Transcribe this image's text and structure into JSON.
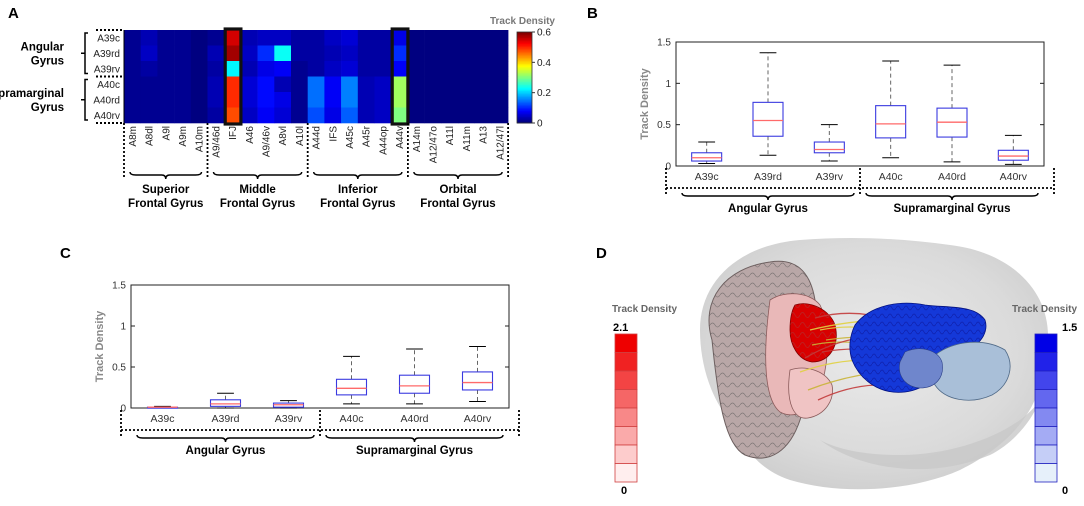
{
  "panels": {
    "a": "A",
    "b": "B",
    "c": "C",
    "d": "D"
  },
  "colors": {
    "box": "#3a3ae0",
    "median": "#ff6a6a",
    "whisker": "#666666",
    "axis": "#222222",
    "highlight": "#111111",
    "heat_low": "#00008f",
    "red_scale_top": "#ee0000",
    "blue_scale_top": "#0000e6"
  },
  "chart_data": [
    {
      "type": "heatmap",
      "panel": "A",
      "title": "Track Density",
      "colorbar": {
        "min": 0,
        "max": 0.6,
        "ticks": [
          "0",
          "0.2",
          "0.4",
          "0.6"
        ],
        "colormap": "jet"
      },
      "rows": [
        "A39c",
        "A39rd",
        "A39rv",
        "A40c",
        "A40rd",
        "A40rv"
      ],
      "row_groups": [
        {
          "label_line1": "Angular",
          "label_line2": "Gyrus",
          "rows": [
            "A39c",
            "A39rd",
            "A39rv"
          ]
        },
        {
          "label_line1": "Supramarginal",
          "label_line2": "Gyrus",
          "rows": [
            "A40c",
            "A40rd",
            "A40rv"
          ]
        }
      ],
      "columns": [
        "A8m",
        "A8dl",
        "A9l",
        "A9m",
        "A10m",
        "A9/46d",
        "IFJ",
        "A46",
        "A9/46v",
        "A8vl",
        "A10l",
        "A44d",
        "IFS",
        "A45c",
        "A45r",
        "A44op",
        "A44v",
        "A14m",
        "A12/47o",
        "A11l",
        "A11m",
        "A13",
        "A12/47l"
      ],
      "column_groups": [
        {
          "label_line1": "Superior",
          "label_line2": "Frontal Gyrus",
          "from": 0,
          "to": 5
        },
        {
          "label_line1": "Middle",
          "label_line2": "Frontal Gyrus",
          "from": 5,
          "to": 11
        },
        {
          "label_line1": "Inferior",
          "label_line2": "Frontal Gyrus",
          "from": 11,
          "to": 17
        },
        {
          "label_line1": "Orbital",
          "label_line2": "Frontal Gyrus",
          "from": 17,
          "to": 23
        }
      ],
      "highlighted_columns": [
        "IFJ",
        "A44v"
      ],
      "values": [
        [
          0.01,
          0.03,
          0.01,
          0.01,
          0.0,
          0.01,
          0.55,
          0.03,
          0.04,
          0.04,
          0.02,
          0.02,
          0.04,
          0.05,
          0.02,
          0.02,
          0.06,
          0.0,
          0.0,
          0.0,
          0.0,
          0.0,
          0.0
        ],
        [
          0.01,
          0.04,
          0.01,
          0.01,
          0.0,
          0.03,
          0.58,
          0.04,
          0.1,
          0.23,
          0.02,
          0.02,
          0.03,
          0.04,
          0.02,
          0.02,
          0.1,
          0.0,
          0.0,
          0.0,
          0.0,
          0.0,
          0.0
        ],
        [
          0.01,
          0.02,
          0.01,
          0.01,
          0.0,
          0.02,
          0.22,
          0.03,
          0.06,
          0.07,
          0.01,
          0.02,
          0.04,
          0.05,
          0.02,
          0.02,
          0.07,
          0.0,
          0.0,
          0.0,
          0.0,
          0.0,
          0.0
        ],
        [
          0.01,
          0.01,
          0.01,
          0.01,
          0.0,
          0.03,
          0.5,
          0.05,
          0.08,
          0.03,
          0.01,
          0.14,
          0.07,
          0.15,
          0.03,
          0.04,
          0.32,
          0.0,
          0.0,
          0.0,
          0.0,
          0.0,
          0.0
        ],
        [
          0.01,
          0.01,
          0.01,
          0.01,
          0.0,
          0.03,
          0.5,
          0.05,
          0.08,
          0.06,
          0.01,
          0.14,
          0.07,
          0.15,
          0.03,
          0.04,
          0.32,
          0.0,
          0.0,
          0.0,
          0.0,
          0.0,
          0.0
        ],
        [
          0.01,
          0.01,
          0.01,
          0.01,
          0.0,
          0.02,
          0.48,
          0.04,
          0.07,
          0.05,
          0.01,
          0.12,
          0.06,
          0.13,
          0.03,
          0.04,
          0.3,
          0.0,
          0.0,
          0.0,
          0.0,
          0.0,
          0.0
        ]
      ]
    },
    {
      "type": "boxplot",
      "panel": "B",
      "ylabel": "Track Density",
      "ylim": [
        0,
        1.5
      ],
      "yticks": [
        "0",
        "0.5",
        "1",
        "1.5"
      ],
      "categories": [
        "A39c",
        "A39rd",
        "A39rv",
        "A40c",
        "A40rd",
        "A40rv"
      ],
      "groups": [
        {
          "label": "Angular Gyrus",
          "from": 0,
          "to": 3
        },
        {
          "label": "Supramarginal Gyrus",
          "from": 3,
          "to": 6
        }
      ],
      "boxes": [
        {
          "min": 0.03,
          "q1": 0.06,
          "median": 0.1,
          "q3": 0.16,
          "max": 0.29
        },
        {
          "min": 0.13,
          "q1": 0.36,
          "median": 0.55,
          "q3": 0.77,
          "max": 1.37
        },
        {
          "min": 0.06,
          "q1": 0.16,
          "median": 0.2,
          "q3": 0.29,
          "max": 0.5
        },
        {
          "min": 0.1,
          "q1": 0.34,
          "median": 0.51,
          "q3": 0.73,
          "max": 1.27
        },
        {
          "min": 0.05,
          "q1": 0.35,
          "median": 0.53,
          "q3": 0.7,
          "max": 1.22
        },
        {
          "min": 0.02,
          "q1": 0.07,
          "median": 0.12,
          "q3": 0.19,
          "max": 0.37
        }
      ]
    },
    {
      "type": "boxplot",
      "panel": "C",
      "ylabel": "Track Density",
      "ylim": [
        0,
        1.5
      ],
      "yticks": [
        "0",
        "0.5",
        "1",
        "1.5"
      ],
      "categories": [
        "A39c",
        "A39rd",
        "A39rv",
        "A40c",
        "A40rd",
        "A40rv"
      ],
      "groups": [
        {
          "label": "Angular Gyrus",
          "from": 0,
          "to": 3
        },
        {
          "label": "Supramarginal Gyrus",
          "from": 3,
          "to": 6
        }
      ],
      "boxes": [
        {
          "min": 0.0,
          "q1": 0.0,
          "median": 0.01,
          "q3": 0.01,
          "max": 0.02
        },
        {
          "min": 0.0,
          "q1": 0.02,
          "median": 0.05,
          "q3": 0.1,
          "max": 0.18
        },
        {
          "min": 0.0,
          "q1": 0.01,
          "median": 0.04,
          "q3": 0.06,
          "max": 0.09
        },
        {
          "min": 0.05,
          "q1": 0.16,
          "median": 0.24,
          "q3": 0.35,
          "max": 0.63
        },
        {
          "min": 0.05,
          "q1": 0.18,
          "median": 0.27,
          "q3": 0.4,
          "max": 0.72
        },
        {
          "min": 0.08,
          "q1": 0.22,
          "median": 0.31,
          "q3": 0.44,
          "max": 0.75
        }
      ]
    },
    {
      "type": "other",
      "panel": "D",
      "description_free": true,
      "left_scale": {
        "title": "Track Density",
        "max": "2.1",
        "min": "0",
        "steps": 8
      },
      "right_scale": {
        "title": "Track Density",
        "max": "1.5",
        "min": "0",
        "steps": 8
      }
    }
  ]
}
